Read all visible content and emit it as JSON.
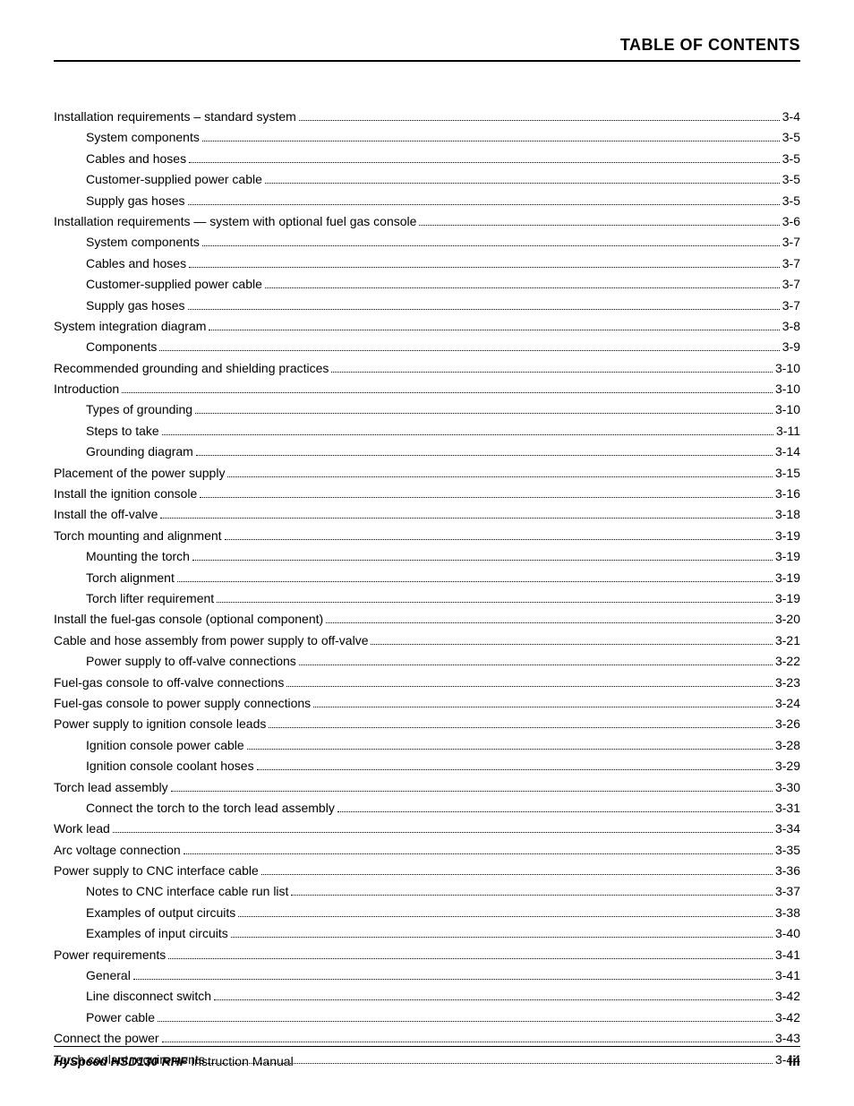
{
  "header": {
    "title": "TABLE OF CONTENTS"
  },
  "footer": {
    "product": "HySpeed HSD130 RHF",
    "suffix": " Instruction Manual",
    "page": "iii"
  },
  "toc": [
    {
      "label": "Installation requirements  –  standard system",
      "page": "3-4",
      "indent": 0
    },
    {
      "label": "System components",
      "page": "3-5",
      "indent": 1
    },
    {
      "label": "Cables and hoses",
      "page": "3-5",
      "indent": 1
    },
    {
      "label": "Customer-supplied power cable",
      "page": "3-5",
      "indent": 1
    },
    {
      "label": "Supply gas hoses",
      "page": "3-5",
      "indent": 1
    },
    {
      "label": "Installation requirements — system with optional fuel gas console",
      "page": "3-6",
      "indent": 0
    },
    {
      "label": "System components",
      "page": "3-7",
      "indent": 1
    },
    {
      "label": "Cables and hoses",
      "page": "3-7",
      "indent": 1
    },
    {
      "label": "Customer-supplied power cable",
      "page": "3-7",
      "indent": 1
    },
    {
      "label": "Supply gas hoses",
      "page": "3-7",
      "indent": 1
    },
    {
      "label": "System integration diagram",
      "page": "3-8",
      "indent": 0
    },
    {
      "label": "Components",
      "page": "3-9",
      "indent": 1
    },
    {
      "label": "Recommended grounding and shielding practices",
      "page": "3-10",
      "indent": 0
    },
    {
      "label": "Introduction",
      "page": "3-10",
      "indent": 0
    },
    {
      "label": "Types of grounding",
      "page": "3-10",
      "indent": 1
    },
    {
      "label": "Steps to take",
      "page": "3-11",
      "indent": 1
    },
    {
      "label": "Grounding diagram",
      "page": "3-14",
      "indent": 1
    },
    {
      "label": "Placement of the power supply",
      "page": "3-15",
      "indent": 0
    },
    {
      "label": "Install the ignition console",
      "page": "3-16",
      "indent": 0
    },
    {
      "label": "Install the off-valve",
      "page": "3-18",
      "indent": 0
    },
    {
      "label": "Torch mounting and alignment",
      "page": "3-19",
      "indent": 0
    },
    {
      "label": "Mounting the torch",
      "page": "3-19",
      "indent": 1
    },
    {
      "label": "Torch alignment",
      "page": "3-19",
      "indent": 1
    },
    {
      "label": "Torch lifter requirement",
      "page": "3-19",
      "indent": 1
    },
    {
      "label": "Install the fuel-gas console (optional component)",
      "page": "3-20",
      "indent": 0
    },
    {
      "label": "Cable and hose assembly from power supply to off-valve",
      "page": "3-21",
      "indent": 0
    },
    {
      "label": "Power supply to off-valve connections",
      "page": "3-22",
      "indent": 1
    },
    {
      "label": "Fuel-gas console to off-valve connections",
      "page": "3-23",
      "indent": 0
    },
    {
      "label": "Fuel-gas console to power supply connections",
      "page": "3-24",
      "indent": 0
    },
    {
      "label": "Power supply to ignition console leads",
      "page": "3-26",
      "indent": 0
    },
    {
      "label": "Ignition console power cable",
      "page": "3-28",
      "indent": 1
    },
    {
      "label": "Ignition console coolant hoses",
      "page": "3-29",
      "indent": 1
    },
    {
      "label": "Torch lead assembly",
      "page": "3-30",
      "indent": 0
    },
    {
      "label": "Connect the torch to the torch lead assembly",
      "page": "3-31",
      "indent": 1
    },
    {
      "label": "Work lead",
      "page": "3-34",
      "indent": 0
    },
    {
      "label": "Arc voltage connection",
      "page": "3-35",
      "indent": 0
    },
    {
      "label": "Power supply to CNC interface cable",
      "page": "3-36",
      "indent": 0
    },
    {
      "label": "Notes to CNC interface cable run list",
      "page": "3-37",
      "indent": 1
    },
    {
      "label": "Examples of output circuits",
      "page": "3-38",
      "indent": 1
    },
    {
      "label": "Examples of input circuits",
      "page": "3-40",
      "indent": 1
    },
    {
      "label": "Power requirements",
      "page": "3-41",
      "indent": 0
    },
    {
      "label": "General",
      "page": "3-41",
      "indent": 1
    },
    {
      "label": "Line disconnect switch",
      "page": "3-42",
      "indent": 1
    },
    {
      "label": "Power cable",
      "page": "3-42",
      "indent": 1
    },
    {
      "label": "Connect the power",
      "page": "3-43",
      "indent": 0
    },
    {
      "label": "Torch coolant requirements",
      "page": "3-44",
      "indent": 0
    }
  ]
}
